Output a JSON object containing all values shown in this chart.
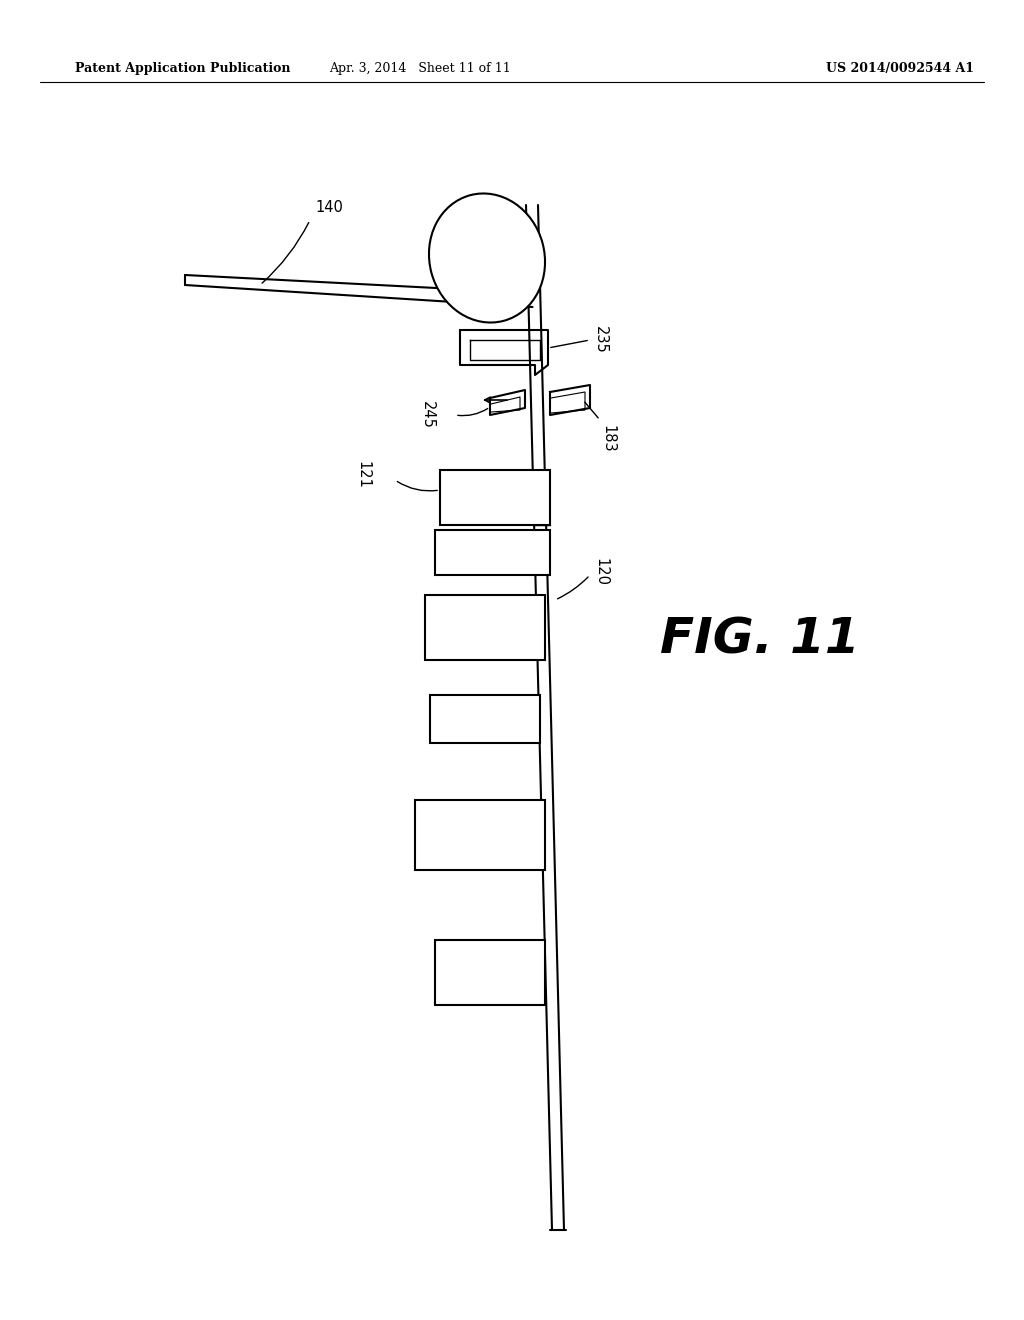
{
  "title_left": "Patent Application Publication",
  "title_mid": "Apr. 3, 2014   Sheet 11 of 11",
  "title_right": "US 2014/0092544 A1",
  "fig_label": "FIG. 11",
  "background_color": "#ffffff",
  "line_color": "#000000",
  "fig_label_fontsize": 36,
  "label_fontsize": 11
}
